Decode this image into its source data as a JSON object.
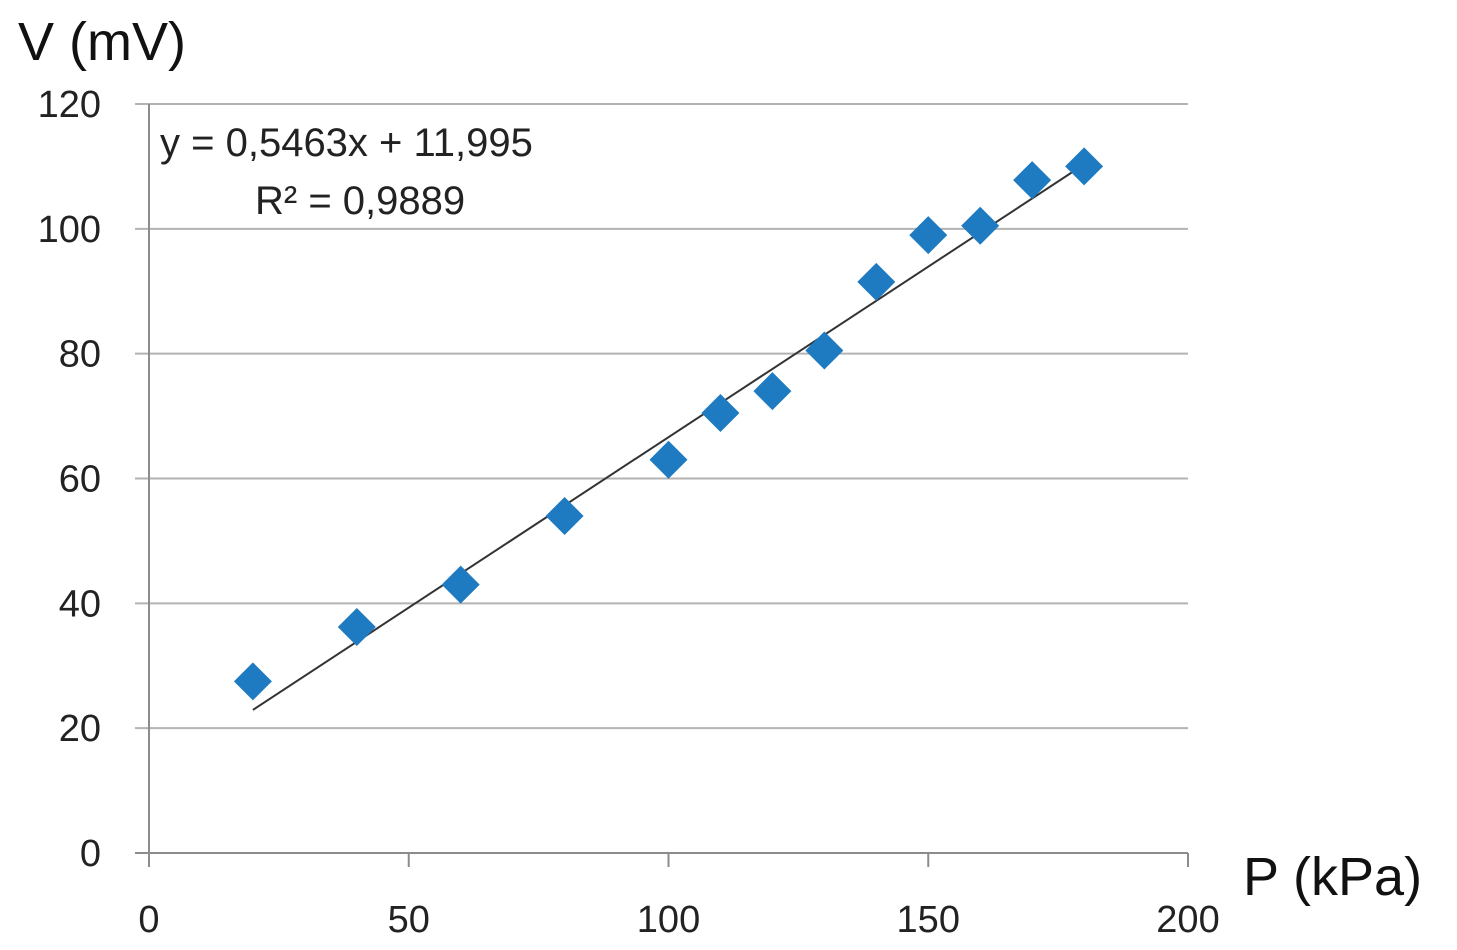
{
  "chart_data": {
    "type": "scatter",
    "title": "",
    "xlabel": "P (kPa)",
    "ylabel": "V (mV)",
    "xlim": [
      0,
      200
    ],
    "ylim": [
      0,
      120
    ],
    "x_ticks": [
      "0",
      "50",
      "100",
      "150",
      "200"
    ],
    "y_ticks": [
      "0",
      "20",
      "40",
      "60",
      "80",
      "100",
      "120"
    ],
    "grid": "horizontal",
    "legend": "none",
    "marker": "diamond",
    "colors": {
      "points": "#1f7bc1",
      "trendline": "#333333",
      "grid": "#b3b3b3",
      "axis": "#8c8c8c"
    },
    "series": [
      {
        "points": [
          {
            "x": 20,
            "y": 27.5
          },
          {
            "x": 40,
            "y": 36.2
          },
          {
            "x": 60,
            "y": 43.0
          },
          {
            "x": 80,
            "y": 54.0
          },
          {
            "x": 100,
            "y": 63.0
          },
          {
            "x": 110,
            "y": 70.5
          },
          {
            "x": 120,
            "y": 74.0
          },
          {
            "x": 130,
            "y": 80.5
          },
          {
            "x": 140,
            "y": 91.5
          },
          {
            "x": 150,
            "y": 99.0
          },
          {
            "x": 160,
            "y": 100.5
          },
          {
            "x": 170,
            "y": 107.8
          },
          {
            "x": 180,
            "y": 110.0
          }
        ]
      }
    ],
    "trendline": {
      "type": "linear",
      "slope": 0.5463,
      "intercept": 11.995,
      "x_range": [
        20,
        180
      ],
      "equation_label": "y = 0,5463x + 11,995",
      "r2_label": "R² = 0,9889"
    }
  }
}
